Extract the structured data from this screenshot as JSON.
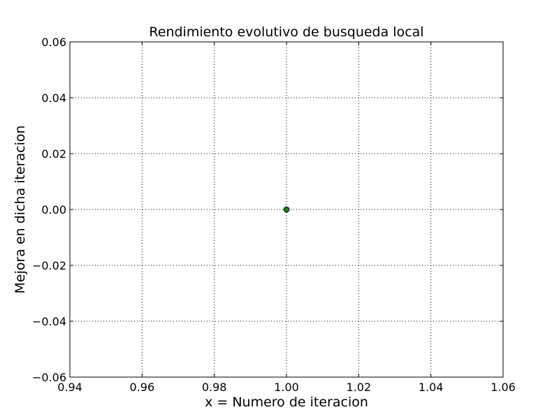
{
  "chart_data": {
    "type": "scatter",
    "title": "Rendimiento evolutivo de busqueda local",
    "xlabel": "x = Numero de iteracion",
    "ylabel": "Mejora en dicha iteracion",
    "xlim": [
      0.94,
      1.06
    ],
    "ylim": [
      -0.06,
      0.06
    ],
    "xticks": [
      0.94,
      0.96,
      0.98,
      1.0,
      1.02,
      1.04,
      1.06
    ],
    "xtick_labels": [
      "0.94",
      "0.96",
      "0.98",
      "1.00",
      "1.02",
      "1.04",
      "1.06"
    ],
    "yticks": [
      0.06,
      0.04,
      0.02,
      0.0,
      -0.02,
      -0.04,
      -0.06
    ],
    "ytick_labels": [
      "0.06",
      "0.04",
      "0.02",
      "0.00",
      "−0.02",
      "−0.04",
      "−0.06"
    ],
    "grid": true,
    "series": [
      {
        "x": [
          1.0
        ],
        "y": [
          0.0
        ],
        "color": "#1a7a1a"
      }
    ]
  }
}
